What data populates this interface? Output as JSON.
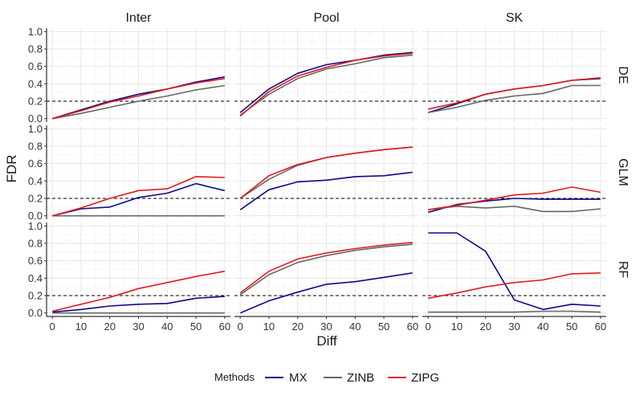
{
  "chart_data": {
    "type": "line",
    "xlabel": "Diff",
    "ylabel": "FDR",
    "x": [
      0,
      10,
      20,
      30,
      40,
      50,
      60
    ],
    "xticks": [
      0,
      10,
      20,
      30,
      40,
      50,
      60
    ],
    "yticks": [
      0.0,
      0.2,
      0.4,
      0.6,
      0.8,
      1.0
    ],
    "ytick_labels": [
      "0.0",
      "0.2",
      "0.4",
      "0.6",
      "0.8",
      "1.0"
    ],
    "xlim": [
      -2,
      62
    ],
    "ylim": [
      -0.04,
      1.04
    ],
    "reference_line": 0.2,
    "grid": true,
    "columns": [
      "Inter",
      "Pool",
      "SK"
    ],
    "rows": [
      "DE",
      "GLM",
      "RF"
    ],
    "legend": {
      "title": "Methods",
      "position": "bottom",
      "items": [
        {
          "name": "MX",
          "color": "#0d0a8a"
        },
        {
          "name": "ZINB",
          "color": "#666666"
        },
        {
          "name": "ZIPG",
          "color": "#e31a1c"
        }
      ]
    },
    "panels": [
      {
        "row": "DE",
        "col": "Inter",
        "series": [
          {
            "name": "MX",
            "values": [
              0.0,
              0.1,
              0.2,
              0.28,
              0.34,
              0.42,
              0.48
            ]
          },
          {
            "name": "ZINB",
            "values": [
              0.0,
              0.06,
              0.13,
              0.2,
              0.26,
              0.33,
              0.38
            ]
          },
          {
            "name": "ZIPG",
            "values": [
              0.0,
              0.09,
              0.19,
              0.26,
              0.34,
              0.41,
              0.46
            ]
          }
        ]
      },
      {
        "row": "DE",
        "col": "Pool",
        "series": [
          {
            "name": "MX",
            "values": [
              0.07,
              0.34,
              0.52,
              0.62,
              0.67,
              0.73,
              0.76
            ]
          },
          {
            "name": "ZINB",
            "values": [
              0.04,
              0.28,
              0.46,
              0.57,
              0.63,
              0.7,
              0.73
            ]
          },
          {
            "name": "ZIPG",
            "values": [
              0.03,
              0.31,
              0.49,
              0.59,
              0.67,
              0.72,
              0.75
            ]
          }
        ]
      },
      {
        "row": "DE",
        "col": "SK",
        "series": [
          {
            "name": "MX",
            "values": [
              0.07,
              0.17,
              0.28,
              0.34,
              0.38,
              0.44,
              0.46
            ]
          },
          {
            "name": "ZINB",
            "values": [
              0.07,
              0.13,
              0.21,
              0.26,
              0.29,
              0.38,
              0.38
            ]
          },
          {
            "name": "ZIPG",
            "values": [
              0.11,
              0.18,
              0.28,
              0.34,
              0.38,
              0.44,
              0.47
            ]
          }
        ]
      },
      {
        "row": "GLM",
        "col": "Inter",
        "series": [
          {
            "name": "MX",
            "values": [
              0.0,
              0.08,
              0.1,
              0.21,
              0.26,
              0.37,
              0.29
            ]
          },
          {
            "name": "ZINB",
            "values": [
              0.0,
              0.0,
              0.0,
              0.0,
              0.0,
              0.0,
              0.0
            ]
          },
          {
            "name": "ZIPG",
            "values": [
              0.0,
              0.09,
              0.2,
              0.29,
              0.31,
              0.45,
              0.44
            ]
          }
        ]
      },
      {
        "row": "GLM",
        "col": "Pool",
        "series": [
          {
            "name": "MX",
            "values": [
              0.07,
              0.3,
              0.39,
              0.41,
              0.45,
              0.46,
              0.5
            ]
          },
          {
            "name": "ZINB",
            "values": [
              0.2,
              0.42,
              0.58,
              0.67,
              0.72,
              0.76,
              0.79
            ]
          },
          {
            "name": "ZIPG",
            "values": [
              0.2,
              0.46,
              0.59,
              0.67,
              0.72,
              0.76,
              0.79
            ]
          }
        ]
      },
      {
        "row": "GLM",
        "col": "SK",
        "series": [
          {
            "name": "MX",
            "values": [
              0.04,
              0.13,
              0.17,
              0.2,
              0.19,
              0.19,
              0.19
            ]
          },
          {
            "name": "ZINB",
            "values": [
              0.07,
              0.11,
              0.09,
              0.11,
              0.05,
              0.05,
              0.08
            ]
          },
          {
            "name": "ZIPG",
            "values": [
              0.07,
              0.12,
              0.18,
              0.24,
              0.26,
              0.33,
              0.27
            ]
          }
        ]
      },
      {
        "row": "RF",
        "col": "Inter",
        "series": [
          {
            "name": "MX",
            "values": [
              0.01,
              0.04,
              0.08,
              0.1,
              0.11,
              0.17,
              0.19
            ]
          },
          {
            "name": "ZINB",
            "values": [
              0.0,
              0.0,
              0.0,
              0.0,
              0.0,
              0.0,
              0.0
            ]
          },
          {
            "name": "ZIPG",
            "values": [
              0.02,
              0.1,
              0.18,
              0.28,
              0.35,
              0.42,
              0.48
            ]
          }
        ]
      },
      {
        "row": "RF",
        "col": "Pool",
        "series": [
          {
            "name": "MX",
            "values": [
              0.0,
              0.14,
              0.24,
              0.33,
              0.36,
              0.41,
              0.46
            ]
          },
          {
            "name": "ZINB",
            "values": [
              0.21,
              0.44,
              0.58,
              0.66,
              0.72,
              0.76,
              0.79
            ]
          },
          {
            "name": "ZIPG",
            "values": [
              0.23,
              0.48,
              0.62,
              0.69,
              0.74,
              0.78,
              0.81
            ]
          }
        ]
      },
      {
        "row": "RF",
        "col": "SK",
        "series": [
          {
            "name": "MX",
            "values": [
              0.92,
              0.92,
              0.71,
              0.15,
              0.04,
              0.1,
              0.08
            ]
          },
          {
            "name": "ZINB",
            "values": [
              0.01,
              0.01,
              0.01,
              0.01,
              0.02,
              0.02,
              0.01
            ]
          },
          {
            "name": "ZIPG",
            "values": [
              0.17,
              0.23,
              0.3,
              0.35,
              0.38,
              0.45,
              0.46
            ]
          }
        ]
      }
    ]
  }
}
